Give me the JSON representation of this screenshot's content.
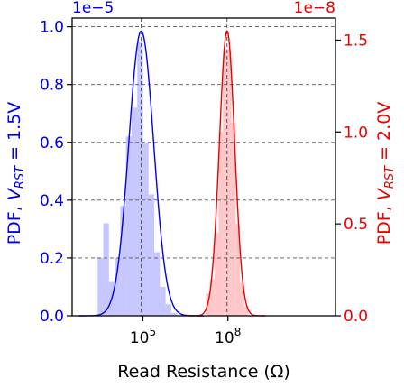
{
  "chart_data": {
    "type": "area",
    "xlabel": "Read Resistance (Ω)",
    "x_scale": "log",
    "xlim_log10": [
      2.5,
      11.8
    ],
    "x_ticks": [
      {
        "value_log10": 5,
        "label_base": "10",
        "label_exp": "5"
      },
      {
        "value_log10": 8,
        "label_base": "10",
        "label_exp": "8"
      }
    ],
    "left_axis": {
      "label_main": "PDF, ",
      "label_var": "V",
      "label_sub": "RST",
      "label_tail": " = 1.5V",
      "multiplier": "1e−5",
      "ylim": [
        0,
        1.03
      ],
      "ticks": [
        {
          "value": 0.0,
          "label": "0.0"
        },
        {
          "value": 0.2,
          "label": "0.2"
        },
        {
          "value": 0.4,
          "label": "0.4"
        },
        {
          "value": 0.6,
          "label": "0.6"
        },
        {
          "value": 0.8,
          "label": "0.8"
        },
        {
          "value": 1.0,
          "label": "1.0"
        }
      ],
      "color": "#0000ee"
    },
    "right_axis": {
      "label_main": "PDF, ",
      "label_var": "V",
      "label_sub": "RST",
      "label_tail": " = 2.0V",
      "multiplier": "1e−8",
      "ylim": [
        0,
        1.62
      ],
      "ticks": [
        {
          "value": 0.0,
          "label": "0.0"
        },
        {
          "value": 0.5,
          "label": "0.5"
        },
        {
          "value": 1.0,
          "label": "1.0"
        },
        {
          "value": 1.5,
          "label": "1.5"
        }
      ],
      "color": "#ee0000"
    },
    "grid": true,
    "series": [
      {
        "axis": "left",
        "color": "#0000ee",
        "fill": "#9999ff",
        "peak_log10": 4.94,
        "peak_value": 0.985,
        "sigma_log10": 0.44,
        "median_log10": 4.94,
        "histogram_bin_log10": [
          3.5,
          3.7,
          3.9,
          4.1,
          4.3,
          4.5,
          4.7,
          4.9,
          5.1,
          5.3,
          5.5,
          5.7,
          5.9,
          6.1
        ],
        "histogram_values": [
          0.2,
          0.32,
          0.12,
          0.2,
          0.38,
          0.62,
          0.72,
          0.95,
          0.6,
          0.42,
          0.22,
          0.1,
          0.04,
          0.01
        ]
      },
      {
        "axis": "right",
        "color": "#ee0000",
        "fill": "#ff9999",
        "peak_log10": 7.97,
        "peak_value": 1.55,
        "sigma_log10": 0.27,
        "median_log10": 7.97,
        "histogram_bin_log10": [
          7.3,
          7.45,
          7.6,
          7.75,
          7.9,
          8.05,
          8.2,
          8.35,
          8.5,
          8.65
        ],
        "histogram_values": [
          0.12,
          0.2,
          0.45,
          1.0,
          1.45,
          1.45,
          1.05,
          0.5,
          0.18,
          0.05
        ]
      }
    ]
  }
}
